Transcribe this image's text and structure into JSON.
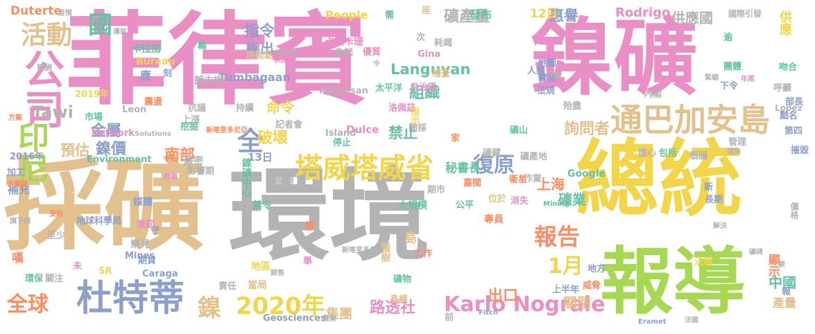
{
  "palette": {
    "pink": "#e98fc6",
    "gray": "#b3b3b3",
    "yellow": "#f2d54a",
    "tan": "#e2c18e",
    "blue": "#8c9fcb",
    "green": "#a6d854",
    "orange": "#fc8d62",
    "teal": "#66c2a5"
  },
  "words": [
    {
      "text": "菲律賓",
      "color": "#e98fc6"
    },
    {
      "text": "鎳礦",
      "color": "#e98fc6"
    },
    {
      "text": "採礦",
      "color": "#e2c18e"
    },
    {
      "text": "環境",
      "color": "#b3b3b3"
    },
    {
      "text": "總統",
      "color": "#f2d54a"
    },
    {
      "text": "報導",
      "color": "#a6d854"
    },
    {
      "text": "公司",
      "color": "#e98fc6"
    },
    {
      "text": "通巴加安島",
      "color": "#e2c18e"
    },
    {
      "text": "塔威塔威省",
      "color": "#f2d54a"
    },
    {
      "text": "杜特蒂",
      "color": "#8c9fcb"
    },
    {
      "text": "印尼",
      "color": "#a6d854"
    },
    {
      "text": "活動",
      "color": "#e2c18e"
    },
    {
      "text": "Karlo Nograle",
      "color": "#e98fc6"
    },
    {
      "text": "鎳",
      "color": "#e2c18e"
    },
    {
      "text": "2020年",
      "color": "#f2d54a"
    },
    {
      "text": "復原",
      "color": "#8c9fcb"
    },
    {
      "text": "報告",
      "color": "#fc8d62"
    },
    {
      "text": "全球",
      "color": "#fc8d62"
    },
    {
      "text": "Languyan",
      "color": "#66c2a5"
    },
    {
      "text": "礦產量",
      "color": "#b3b3b3"
    },
    {
      "text": "指令",
      "color": "#8c9fcb"
    },
    {
      "text": "國",
      "color": "#66c2a5"
    },
    {
      "text": "全",
      "color": "#8c9fcb"
    },
    {
      "text": "1月",
      "color": "#f2d54a"
    },
    {
      "text": "路透社",
      "color": "#e98fc6"
    },
    {
      "text": "南部",
      "color": "#fc8d62"
    },
    {
      "text": "禁止",
      "color": "#66c2a5"
    },
    {
      "text": "破壞",
      "color": "#f2d54a"
    },
    {
      "text": "鎳價",
      "color": "#8c9fcb"
    },
    {
      "text": "金屬",
      "color": "#8c9fcb"
    },
    {
      "text": "Tawi",
      "color": "#b3b3b3"
    },
    {
      "text": "組織",
      "color": "#66c2a5"
    },
    {
      "text": "命令",
      "color": "#f2d54a"
    },
    {
      "text": "供應國",
      "color": "#b3b3b3"
    },
    {
      "text": "供應",
      "color": "#f2d54a"
    },
    {
      "text": "Duterte",
      "color": "#fc8d62"
    },
    {
      "text": "Rodrigo",
      "color": "#e98fc6"
    },
    {
      "text": "惠譽",
      "color": "#8c9fcb"
    },
    {
      "text": "12日",
      "color": "#f2d54a"
    },
    {
      "text": "國際引發",
      "color": "#b3b3b3"
    },
    {
      "text": "指出",
      "color": "#8c9fcb"
    },
    {
      "text": "詢問者",
      "color": "#e2c18e"
    },
    {
      "text": "上海",
      "color": "#fc8d62"
    },
    {
      "text": "礦業",
      "color": "#66c2a5"
    },
    {
      "text": "出口",
      "color": "#fc8d62"
    },
    {
      "text": "中國",
      "color": "#66c2a5"
    },
    {
      "text": "關閉",
      "color": "#e2c18e"
    },
    {
      "text": "顯示",
      "color": "#fc8d62"
    },
    {
      "text": "集團",
      "color": "#e2c18e"
    },
    {
      "text": "島",
      "color": "#e2c18e"
    },
    {
      "text": "預估",
      "color": "#e2c18e"
    },
    {
      "text": "Tumbagaan",
      "color": "#8c9fcb"
    },
    {
      "text": "People",
      "color": "#f2d54a"
    },
    {
      "text": "Gina",
      "color": "#e98fc6"
    },
    {
      "text": "卡里卡珊",
      "color": "#e98fc6"
    },
    {
      "text": "卡拉加",
      "color": "#66c2a5"
    },
    {
      "text": "Bureau",
      "color": "#f2d54a"
    },
    {
      "text": "Kalikasan",
      "color": "#b3b3b3"
    },
    {
      "text": "Dulce",
      "color": "#e98fc6"
    },
    {
      "text": "Island",
      "color": "#b3b3b3"
    },
    {
      "text": "Network",
      "color": "#e98fc6"
    },
    {
      "text": "Environment",
      "color": "#66c2a5"
    },
    {
      "text": "Mines",
      "color": "#8c9fcb"
    },
    {
      "text": "Caraga",
      "color": "#8c9fcb"
    },
    {
      "text": "SR",
      "color": "#f2d54a"
    },
    {
      "text": "Geosciences",
      "color": "#8c9fcb"
    },
    {
      "text": "Leon",
      "color": "#b3b3b3"
    },
    {
      "text": "Lopez",
      "color": "#b3b3b3"
    },
    {
      "text": "Google",
      "color": "#66c2a5"
    },
    {
      "text": "2019年",
      "color": "#f2d54a"
    },
    {
      "text": "2016年",
      "color": "#8c9fcb"
    },
    {
      "text": "13日",
      "color": "#8c9fcb"
    },
    {
      "text": "地球科學局",
      "color": "#8c9fcb"
    },
    {
      "text": "鎳礦中心",
      "color": "#66c2a5"
    },
    {
      "text": "大規模",
      "color": "#66c2a5"
    },
    {
      "text": "嚴密",
      "color": "#b3b3b3"
    },
    {
      "text": "影響期",
      "color": "#b3b3b3"
    },
    {
      "text": "樂見",
      "color": "#b3b3b3"
    },
    {
      "text": "期貨",
      "color": "#8c9fcb"
    },
    {
      "text": "媒體",
      "color": "#8c9fcb"
    },
    {
      "text": "聯盟",
      "color": "#b3b3b3"
    },
    {
      "text": "禁令",
      "color": "#66c2a5"
    },
    {
      "text": "當局",
      "color": "#e2c18e"
    },
    {
      "text": "地區",
      "color": "#f2d54a"
    },
    {
      "text": "責任",
      "color": "#b3b3b3"
    },
    {
      "text": "環保",
      "color": "#66c2a5"
    },
    {
      "text": "關注",
      "color": "#b3b3b3"
    },
    {
      "text": "嘆",
      "color": "#fc8d62"
    },
    {
      "text": "補充",
      "color": "#8c9fcb"
    },
    {
      "text": "加工",
      "color": "#8c9fcb"
    },
    {
      "text": "至少",
      "color": "#b3b3b3"
    },
    {
      "text": "種樹",
      "color": "#e2c18e"
    },
    {
      "text": "工作",
      "color": "#fc8d62"
    },
    {
      "text": "礦物",
      "color": "#66c2a5"
    },
    {
      "text": "島嶼",
      "color": "#e2c18e"
    },
    {
      "text": "專員",
      "color": "#fc8d62"
    },
    {
      "text": "消失",
      "color": "#e98fc6"
    },
    {
      "text": "公平",
      "color": "#66c2a5"
    },
    {
      "text": "期市",
      "color": "#b3b3b3"
    },
    {
      "text": "秘書長",
      "color": "#66c2a5"
    },
    {
      "text": "嘉閩",
      "color": "#fc8d62"
    },
    {
      "text": "位於",
      "color": "#e2c18e"
    },
    {
      "text": "衛星",
      "color": "#fc8d62"
    },
    {
      "text": "作業",
      "color": "#b3b3b3"
    },
    {
      "text": "礦產地",
      "color": "#b3b3b3"
    },
    {
      "text": "擔心",
      "color": "#b3b3b3"
    },
    {
      "text": "包括",
      "color": "#66c2a5"
    },
    {
      "text": "倡議",
      "color": "#b3b3b3"
    },
    {
      "text": "內閣",
      "color": "#b3b3b3"
    },
    {
      "text": "法規",
      "color": "#8c9fcb"
    },
    {
      "text": "實施",
      "color": "#8c9fcb"
    },
    {
      "text": "地圖",
      "color": "#8c9fcb"
    },
    {
      "text": "人類",
      "color": "#8c9fcb"
    },
    {
      "text": "稽查",
      "color": "#e2c18e"
    },
    {
      "text": "自治區",
      "color": "#e98fc6"
    },
    {
      "text": "太平洋",
      "color": "#66c2a5"
    },
    {
      "text": "洛佩茲",
      "color": "#e98fc6"
    },
    {
      "text": "指示",
      "color": "#f2d54a"
    },
    {
      "text": "開採",
      "color": "#b3b3b3"
    },
    {
      "text": "記者會",
      "color": "#b3b3b3"
    },
    {
      "text": "停止",
      "color": "#66c2a5"
    },
    {
      "text": "持續",
      "color": "#b3b3b3"
    },
    {
      "text": "震盪",
      "color": "#fc8d62"
    },
    {
      "text": "應",
      "color": "#8c9fcb"
    },
    {
      "text": "刻",
      "color": "#8c9fcb"
    },
    {
      "text": "朗古揚",
      "color": "#b3b3b3"
    },
    {
      "text": "時間點",
      "color": "#e2c18e"
    },
    {
      "text": "優質",
      "color": "#e98fc6"
    },
    {
      "text": "負起",
      "color": "#b3b3b3"
    },
    {
      "text": "耗竭",
      "color": "#b3b3b3"
    },
    {
      "text": "座",
      "color": "#e2c18e"
    },
    {
      "text": "發布",
      "color": "#66c2a5"
    },
    {
      "text": "需",
      "color": "#66c2a5"
    },
    {
      "text": "家",
      "color": "#fc8d62"
    },
    {
      "text": "殆盡",
      "color": "#b3b3b3"
    },
    {
      "text": "呼籲",
      "color": "#b3b3b3"
    },
    {
      "text": "部長",
      "color": "#8c9fcb"
    },
    {
      "text": "黜名",
      "color": "#8c9fcb"
    },
    {
      "text": "第四",
      "color": "#8c9fcb"
    },
    {
      "text": "摧毀",
      "color": "#8c9fcb"
    },
    {
      "text": "價格",
      "color": "#b3b3b3"
    },
    {
      "text": "管理",
      "color": "#b3b3b3"
    },
    {
      "text": "團體",
      "color": "#66c2a5"
    },
    {
      "text": "吻合",
      "color": "#66c2a5"
    },
    {
      "text": "下令",
      "color": "#8c9fcb"
    },
    {
      "text": "逾",
      "color": "#66c2a5"
    },
    {
      "text": "新",
      "color": "#8c9fcb"
    },
    {
      "text": "長期",
      "color": "#8c9fcb"
    },
    {
      "text": "報",
      "color": "#8c9fcb"
    },
    {
      "text": "產量",
      "color": "#e2c18e"
    },
    {
      "text": "法局",
      "color": "#f2d54a"
    },
    {
      "text": "地方",
      "color": "#8c9fcb"
    },
    {
      "text": "威脅",
      "color": "#fc8d62"
    },
    {
      "text": "上半年",
      "color": "#8c9fcb"
    },
    {
      "text": "礦山",
      "color": "#66c2a5"
    },
    {
      "text": "礦藏",
      "color": "#b3b3b3"
    },
    {
      "text": "上漲",
      "color": "#b3b3b3"
    },
    {
      "text": "挖掘",
      "color": "#66c2a5"
    },
    {
      "text": "市場",
      "color": "#66c2a5"
    },
    {
      "text": "輪",
      "color": "#66c2a5"
    },
    {
      "text": "年",
      "color": "#e98fc6"
    },
    {
      "text": "抗議",
      "color": "#b3b3b3"
    },
    {
      "text": "激罰",
      "color": "#e98fc6"
    },
    {
      "text": "守",
      "color": "#8c9fcb"
    },
    {
      "text": "舉",
      "color": "#e98fc6"
    },
    {
      "text": "未",
      "color": "#e98fc6"
    },
    {
      "text": "植",
      "color": "#fc8d62"
    },
    {
      "text": "次",
      "color": "#b3b3b3"
    },
    {
      "text": "前",
      "color": "#b3b3b3"
    },
    {
      "text": "疫情",
      "color": "#b3b3b3"
    },
    {
      "text": "導致",
      "color": "#b3b3b3"
    },
    {
      "text": "報酬",
      "color": "#b3b3b3"
    },
    {
      "text": "方案",
      "color": "#fc8d62"
    },
    {
      "text": "供應鏈",
      "color": "#fc8d62"
    },
    {
      "text": "旗下個",
      "color": "#b3b3b3"
    },
    {
      "text": "受阻",
      "color": "#fc8d62"
    },
    {
      "text": "Solutions",
      "color": "#b3b3b3"
    },
    {
      "text": "新喀里多尼亞",
      "color": "#fc8d62"
    },
    {
      "text": "新喀里多尼亞",
      "color": "#b3b3b3"
    },
    {
      "text": "Mining",
      "color": "#66c2a5"
    },
    {
      "text": "Fitch",
      "color": "#8c9fcb"
    },
    {
      "text": "Eramet",
      "color": "#8c9fcb"
    },
    {
      "text": "產業",
      "color": "#b3b3b3"
    },
    {
      "text": "銷售",
      "color": "#b3b3b3"
    },
    {
      "text": "解決",
      "color": "#b3b3b3"
    },
    {
      "text": "措施",
      "color": "#b3b3b3"
    },
    {
      "text": "中斷",
      "color": "#b3b3b3"
    },
    {
      "text": "法國",
      "color": "#b3b3b3"
    },
    {
      "text": "麥格里",
      "color": "#b3b3b3"
    },
    {
      "text": "供應商",
      "color": "#e98fc6"
    },
    {
      "text": "省",
      "color": "#e98fc6"
    },
    {
      "text": "禁",
      "color": "#b3b3b3"
    },
    {
      "text": "封鎖",
      "color": "#e98fc6"
    },
    {
      "text": "緊縮",
      "color": "#b3b3b3"
    },
    {
      "text": "年尾",
      "color": "#e98fc6"
    },
    {
      "text": "礦碑",
      "color": "#b3b3b3"
    },
    {
      "text": "令",
      "color": "#b3b3b3"
    }
  ]
}
